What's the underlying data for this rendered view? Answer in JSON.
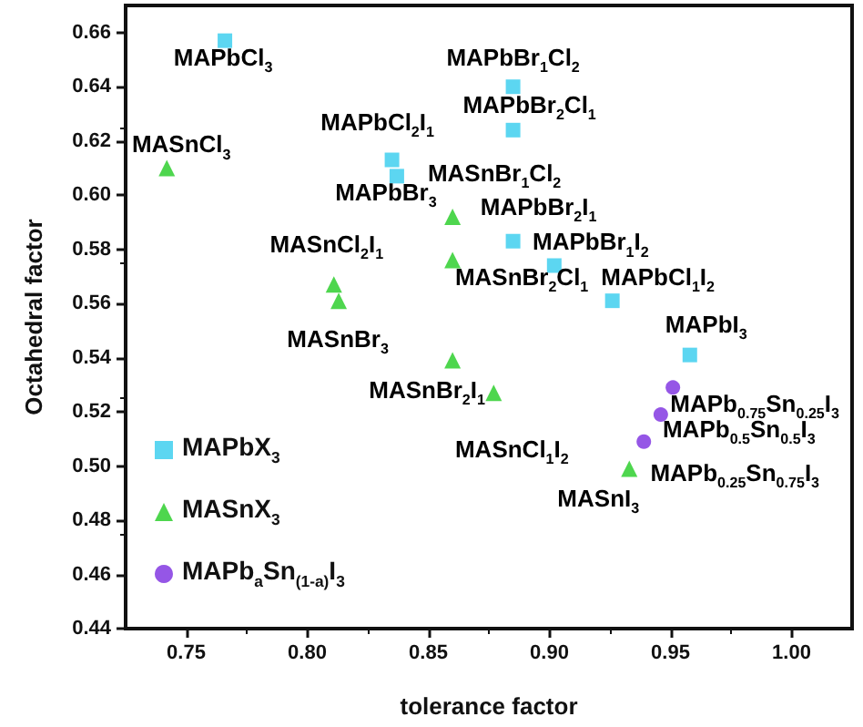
{
  "chart_data": {
    "type": "scatter",
    "xlabel": "tolerance factor",
    "ylabel": "Octahedral factor",
    "xlim": [
      0.725,
      1.025
    ],
    "ylim": [
      0.44,
      0.67
    ],
    "xticks": [
      0.75,
      {
        "value": 0.8,
        "label": "0.80"
      },
      0.85,
      {
        "value": 0.9,
        "label": "0.90"
      },
      0.95,
      {
        "value": 1.0,
        "label": "1.00"
      }
    ],
    "yticks": [
      0.44,
      0.46,
      0.48,
      {
        "value": 0.5,
        "label": "0.50"
      },
      0.52,
      0.54,
      0.56,
      0.58,
      {
        "value": 0.6,
        "label": "0.60"
      },
      0.62,
      0.64,
      0.66
    ],
    "grid": false,
    "legend": "bottom left",
    "series": [
      {
        "name": "MAPbX$_{3}$",
        "color": "#33ccee",
        "marker": "square",
        "x": [
          0.766,
          0.835,
          0.837,
          0.885,
          0.885,
          0.885,
          0.902,
          0.926,
          0.958
        ],
        "values": [
          0.657,
          0.613,
          0.607,
          0.64,
          0.624,
          0.583,
          0.574,
          0.561,
          0.541
        ]
      },
      {
        "name": "MASnX$_{3}$",
        "color": "#22cc22",
        "marker": "triangle",
        "x": [
          0.742,
          0.811,
          0.813,
          0.86,
          0.86,
          0.86,
          0.877,
          0.933
        ],
        "values": [
          0.61,
          0.567,
          0.561,
          0.592,
          0.576,
          0.539,
          0.527,
          0.499
        ]
      },
      {
        "name": "MAPb$_{a}$Sn$_{(1-a)}$I$_{3}$",
        "color": "#7a2ce0",
        "marker": "circle",
        "x": [
          0.951,
          0.946,
          0.939
        ],
        "values": [
          0.529,
          0.519,
          0.509
        ]
      }
    ],
    "annotations": [
      {
        "text": "MAPbCl$_{3}$",
        "x": 0.766,
        "y": 0.657
      },
      {
        "text": "MAPbCl$_{2}$I$_{1}$",
        "x": 0.835,
        "y": 0.613
      },
      {
        "text": "MAPbBr$_{3}$",
        "x": 0.837,
        "y": 0.607
      },
      {
        "text": "MAPbBr$_{1}$Cl$_{2}$",
        "x": 0.885,
        "y": 0.64
      },
      {
        "text": "MAPbBr$_{2}$Cl$_{1}$",
        "x": 0.885,
        "y": 0.624
      },
      {
        "text": "MAPbBr$_{2}$I$_{1}$",
        "x": 0.885,
        "y": 0.583
      },
      {
        "text": "MAPbBr$_{1}$I$_{2}$",
        "x": 0.902,
        "y": 0.574
      },
      {
        "text": "MAPbCl$_{1}$I$_{2}$",
        "x": 0.926,
        "y": 0.561
      },
      {
        "text": "MAPbI$_{3}$",
        "x": 0.958,
        "y": 0.541
      },
      {
        "text": "MASnCl$_{3}$",
        "x": 0.742,
        "y": 0.61
      },
      {
        "text": "MASnCl$_{2}$I$_{1}$",
        "x": 0.811,
        "y": 0.567
      },
      {
        "text": "MASnBr$_{1}$Cl$_{2}$",
        "x": 0.86,
        "y": 0.592
      },
      {
        "text": "MASnBr$_{2}$Cl$_{1}$",
        "x": 0.86,
        "y": 0.576
      },
      {
        "text": "MASnBr$_{3}$",
        "x": 0.86,
        "y": 0.539
      },
      {
        "text": "MASnBr$_{2}$I$_{1}$",
        "x": 0.86,
        "y": 0.539
      },
      {
        "text": "MASnCl$_{1}$I$_{2}$",
        "x": 0.877,
        "y": 0.527
      },
      {
        "text": "MASnI$_{3}$",
        "x": 0.933,
        "y": 0.499
      },
      {
        "text": "MAPb$_{0.75}$Sn$_{0.25}$I$_{3}$",
        "x": 0.951,
        "y": 0.529
      },
      {
        "text": "MAPb$_{0.5}$Sn$_{0.5}$I$_{3}$",
        "x": 0.946,
        "y": 0.519
      },
      {
        "text": "MAPb$_{0.25}$Sn$_{0.75}$I$_{3}$",
        "x": 0.939,
        "y": 0.509
      }
    ]
  }
}
